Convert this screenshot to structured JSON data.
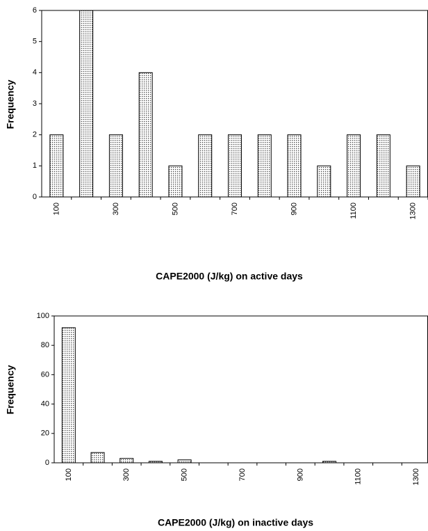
{
  "chart_data": [
    {
      "type": "bar",
      "x_label": "CAPE2000 (J/kg) on active days",
      "y_label": "Frequency",
      "categories": [
        "100",
        null,
        "300",
        null,
        "500",
        null,
        "700",
        null,
        "900",
        null,
        "1100",
        null,
        "1300"
      ],
      "values": [
        2,
        6,
        2,
        4,
        1,
        2,
        2,
        2,
        2,
        1,
        2,
        2,
        1
      ],
      "color": "#d8d8d8",
      "ylim": [
        0,
        6
      ],
      "yticks": [
        0,
        1,
        2,
        3,
        4,
        5,
        6
      ]
    },
    {
      "type": "bar",
      "x_label": "CAPE2000 (J/kg) on inactive days",
      "y_label": "Frequency",
      "categories": [
        "100",
        null,
        "300",
        null,
        "500",
        null,
        "700",
        null,
        "900",
        null,
        "1100",
        null,
        "1300"
      ],
      "values": [
        92,
        7,
        3,
        1,
        2,
        0,
        0,
        0,
        0,
        1,
        0,
        0,
        0
      ],
      "color": "#d8d8d8",
      "ylim": [
        0,
        100
      ],
      "yticks": [
        0,
        20,
        40,
        60,
        80,
        100
      ]
    }
  ]
}
